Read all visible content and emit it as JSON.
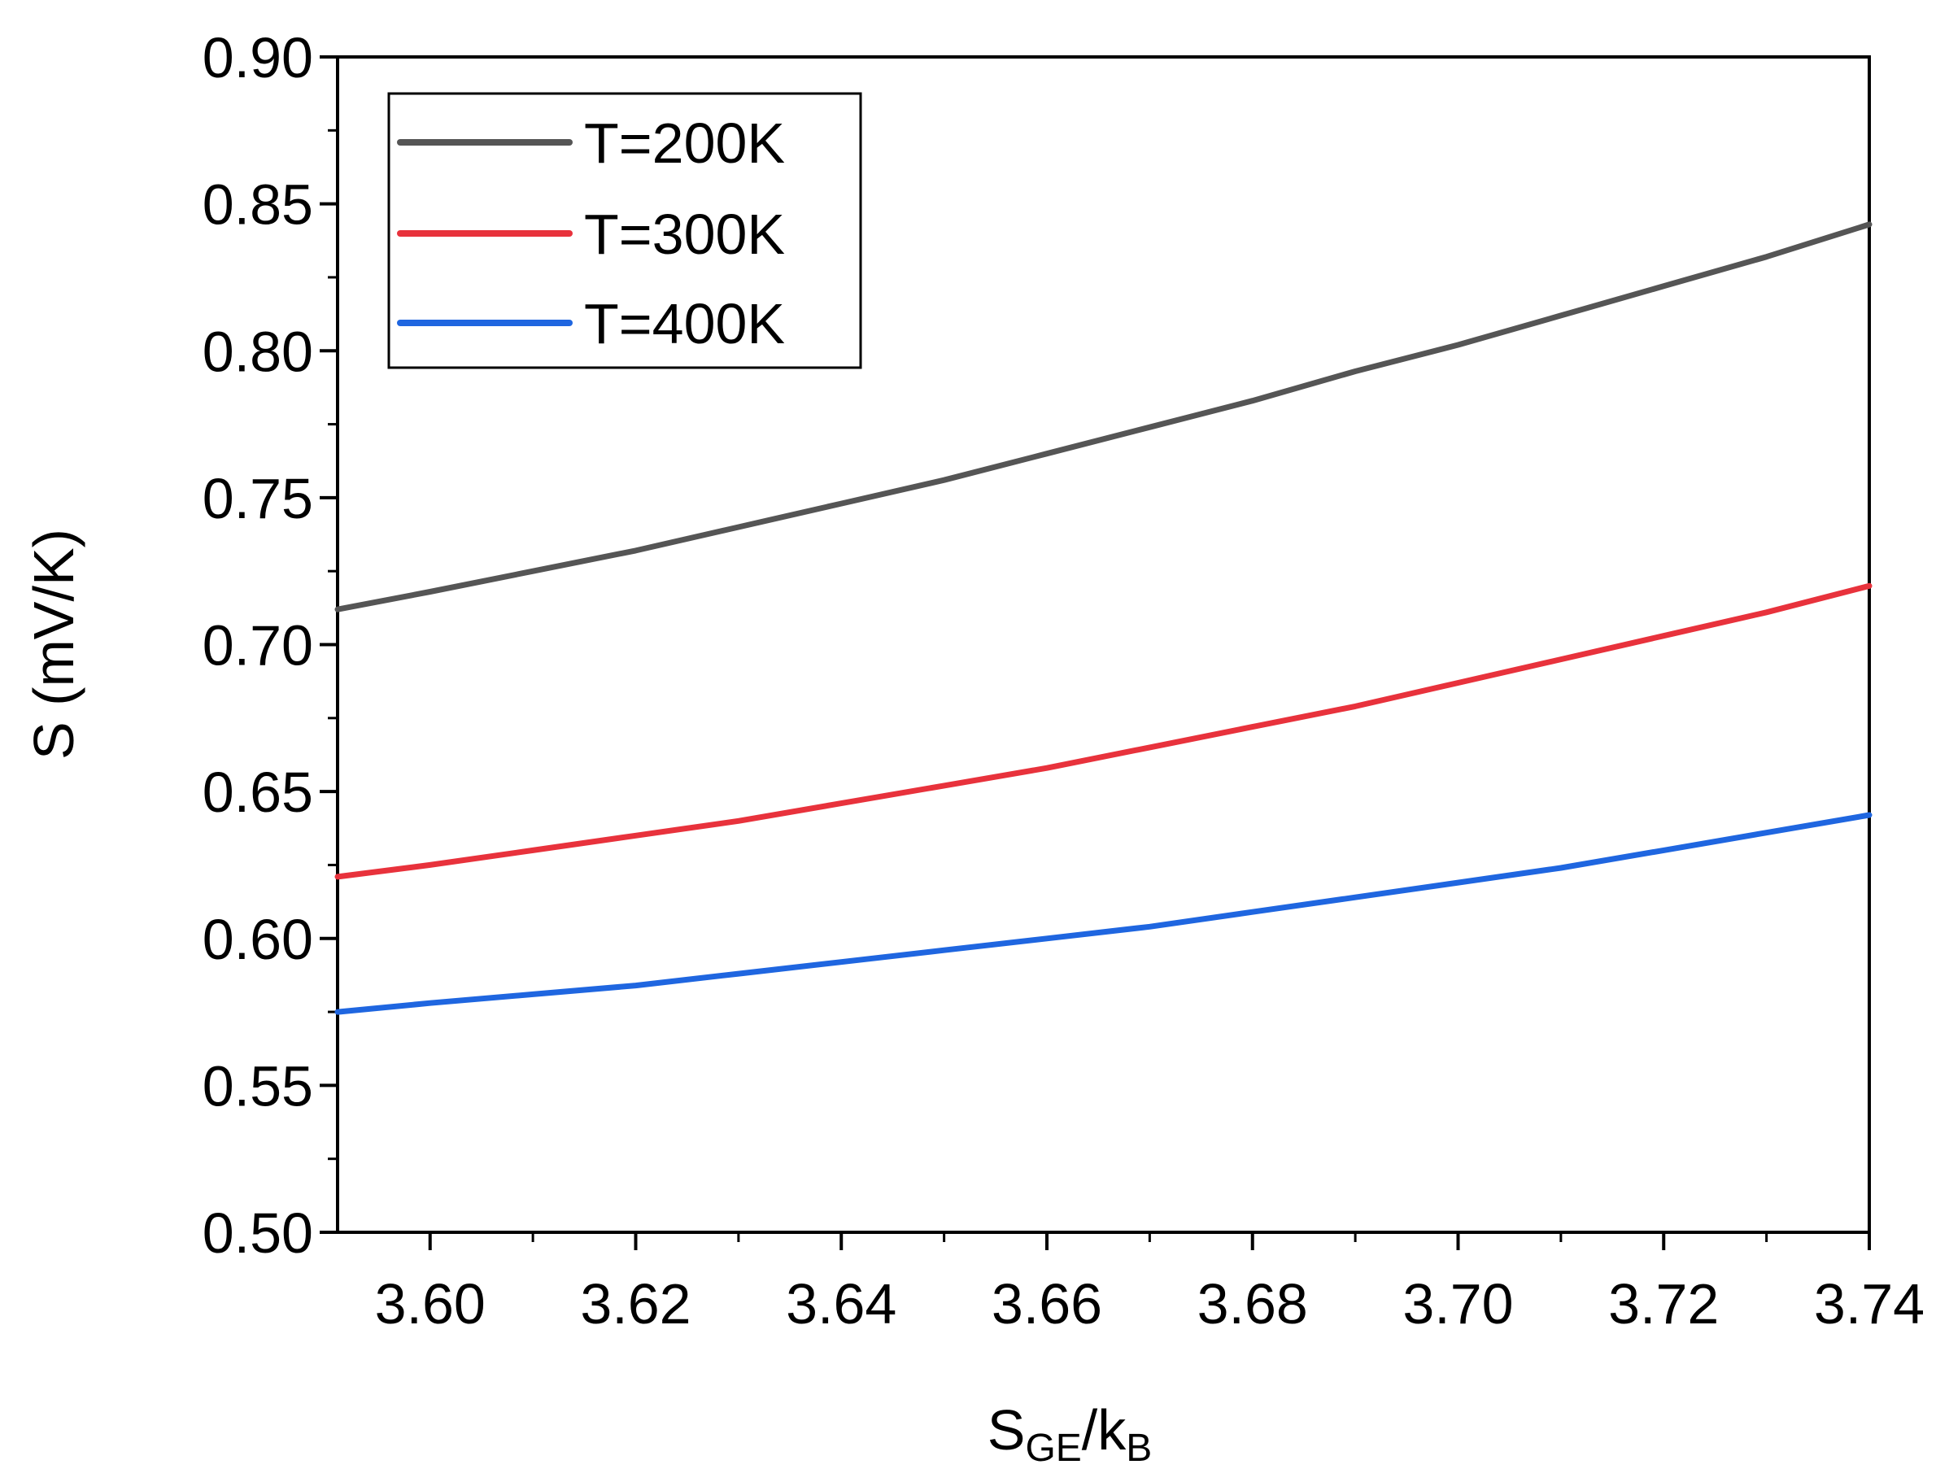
{
  "chart_data": {
    "type": "line",
    "title": "",
    "xlabel": {
      "main": "S",
      "sub1": "GE",
      "mid": "/k",
      "sub2": "B"
    },
    "ylabel": "S (mV/K)",
    "xlim": [
      3.591,
      3.74
    ],
    "ylim": [
      0.5,
      0.9
    ],
    "x_ticks": [
      "3.60",
      "3.62",
      "3.64",
      "3.66",
      "3.68",
      "3.70",
      "3.72",
      "3.74"
    ],
    "x_tick_values": [
      3.6,
      3.62,
      3.64,
      3.66,
      3.68,
      3.7,
      3.72,
      3.74
    ],
    "y_ticks": [
      "0.50",
      "0.55",
      "0.60",
      "0.65",
      "0.70",
      "0.75",
      "0.80",
      "0.85",
      "0.90"
    ],
    "y_tick_values": [
      0.5,
      0.55,
      0.6,
      0.65,
      0.7,
      0.75,
      0.8,
      0.85,
      0.9
    ],
    "grid": false,
    "legend_position": "top-left",
    "x": [
      3.591,
      3.6,
      3.61,
      3.62,
      3.63,
      3.64,
      3.65,
      3.66,
      3.67,
      3.68,
      3.69,
      3.7,
      3.71,
      3.72,
      3.73,
      3.74
    ],
    "series": [
      {
        "name": "T=200K",
        "color": "#555555",
        "values": [
          0.712,
          0.718,
          0.725,
          0.732,
          0.74,
          0.748,
          0.756,
          0.765,
          0.774,
          0.783,
          0.793,
          0.802,
          0.812,
          0.822,
          0.832,
          0.843
        ]
      },
      {
        "name": "T=300K",
        "color": "#e8323c",
        "values": [
          0.621,
          0.625,
          0.63,
          0.635,
          0.64,
          0.646,
          0.652,
          0.658,
          0.665,
          0.672,
          0.679,
          0.687,
          0.695,
          0.703,
          0.711,
          0.72
        ]
      },
      {
        "name": "T=400K",
        "color": "#1f66e0",
        "values": [
          0.575,
          0.578,
          0.581,
          0.584,
          0.588,
          0.592,
          0.596,
          0.6,
          0.604,
          0.609,
          0.614,
          0.619,
          0.624,
          0.63,
          0.636,
          0.642
        ]
      }
    ]
  }
}
